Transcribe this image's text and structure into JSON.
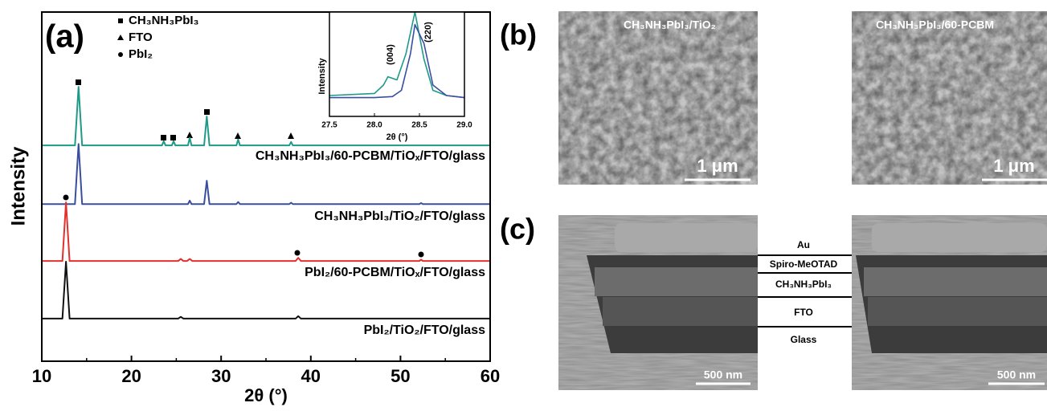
{
  "chart_data": {
    "type": "line",
    "panel_label": "(a)",
    "xlabel": "2θ (°)",
    "ylabel": "Intensity",
    "xlim": [
      10,
      60
    ],
    "xticks": [
      10,
      20,
      30,
      40,
      50,
      60
    ],
    "ylim": [
      0,
      100
    ],
    "legend": [
      {
        "symbol": "square",
        "label": "CH₃NH₃PbI₃"
      },
      {
        "symbol": "triangle",
        "label": "FTO"
      },
      {
        "symbol": "circle",
        "label": "PbI₂"
      }
    ],
    "series": [
      {
        "name": "CH₃NH₃PbI₃/60-PCBM/TiOₓ/FTO/glass",
        "color": "#1f9a88",
        "x": [
          10,
          13.7,
          14.1,
          14.5,
          23.4,
          23.6,
          23.8,
          24.5,
          24.7,
          24.9,
          26.3,
          26.5,
          26.7,
          28.1,
          28.4,
          28.7,
          31.7,
          31.9,
          32.1,
          37.6,
          37.8,
          38,
          60
        ],
        "values": [
          61.8,
          61.8,
          78.6,
          61.8,
          61.8,
          63,
          61.8,
          61.8,
          63,
          61.8,
          61.8,
          64,
          61.8,
          61.8,
          70.1,
          61.8,
          61.8,
          63.5,
          61.8,
          61.8,
          62.8,
          61.8,
          61.8
        ]
      },
      {
        "name": "CH₃NH₃PbI₃/TiO₂/FTO/glass",
        "color": "#3a4ea0",
        "x": [
          10,
          13.7,
          14.1,
          14.5,
          26.3,
          26.5,
          26.7,
          28.1,
          28.4,
          28.7,
          31.7,
          31.9,
          32.1,
          37.6,
          37.8,
          38,
          52.1,
          52.3,
          52.5,
          60
        ],
        "values": [
          45,
          45,
          62.2,
          45,
          45,
          46,
          45,
          45,
          51.7,
          45,
          45,
          45.6,
          45,
          45,
          45.4,
          45,
          45,
          45.3,
          45,
          45
        ]
      },
      {
        "name": "PbI₂/60-PCBM/TiOₓ/FTO/glass",
        "color": "#e2302c",
        "x": [
          10,
          12.3,
          12.7,
          13.1,
          25.2,
          25.5,
          25.8,
          26.2,
          26.5,
          26.8,
          38.3,
          38.6,
          38.9,
          52.1,
          52.3,
          52.5,
          60
        ],
        "values": [
          28.7,
          28.7,
          45.5,
          28.7,
          28.7,
          29.3,
          28.7,
          28.7,
          29.3,
          28.7,
          28.7,
          29.6,
          28.7,
          28.7,
          29.1,
          28.7,
          28.7
        ]
      },
      {
        "name": "PbI₂/TiO₂/FTO/glass",
        "color": "#111111",
        "x": [
          10,
          12.3,
          12.7,
          13.1,
          25.2,
          25.5,
          25.8,
          38.3,
          38.6,
          38.9,
          60
        ],
        "values": [
          12.2,
          12.2,
          28.5,
          12.2,
          12.2,
          12.7,
          12.2,
          12.2,
          12.9,
          12.2,
          12.2
        ]
      }
    ],
    "inset": {
      "xlabel": "2θ (°)",
      "ylabel": "Intensity",
      "xlim": [
        27.5,
        29
      ],
      "ylim": [
        0,
        100
      ],
      "xticks": [
        27.5,
        {
          "value": 28,
          "label": "28.0"
        },
        28.5,
        {
          "value": 29,
          "label": "29.0"
        }
      ],
      "annotations": [
        "(004)",
        "(220)"
      ],
      "series": [
        {
          "color": "#1f9a88",
          "x": [
            27.5,
            28.0,
            28.1,
            28.15,
            28.25,
            28.35,
            28.45,
            28.55,
            28.65,
            28.8,
            29
          ],
          "values": [
            20,
            22,
            30,
            38,
            35,
            60,
            100,
            55,
            25,
            20,
            18
          ]
        },
        {
          "color": "#3a4ea0",
          "x": [
            27.5,
            28.0,
            28.2,
            28.3,
            28.4,
            28.45,
            28.55,
            28.65,
            28.8,
            29
          ],
          "values": [
            18,
            18,
            19,
            25,
            60,
            88,
            70,
            30,
            20,
            18
          ]
        }
      ]
    }
  },
  "panels": {
    "b": {
      "label": "(b)",
      "images": [
        {
          "caption": "CH₃NH₃PbI₃/TiO₂",
          "scale_bar": "1 μm"
        },
        {
          "caption": "CH₃NH₃PbI₃/60-PCBM",
          "scale_bar": "1 μm"
        }
      ]
    },
    "c": {
      "label": "(c)",
      "layers": [
        "Au",
        "Spiro-MeOTAD",
        "CH₃NH₃PbI₃",
        "FTO",
        "Glass"
      ],
      "scale_bars": [
        "500 nm",
        "500 nm"
      ]
    }
  }
}
